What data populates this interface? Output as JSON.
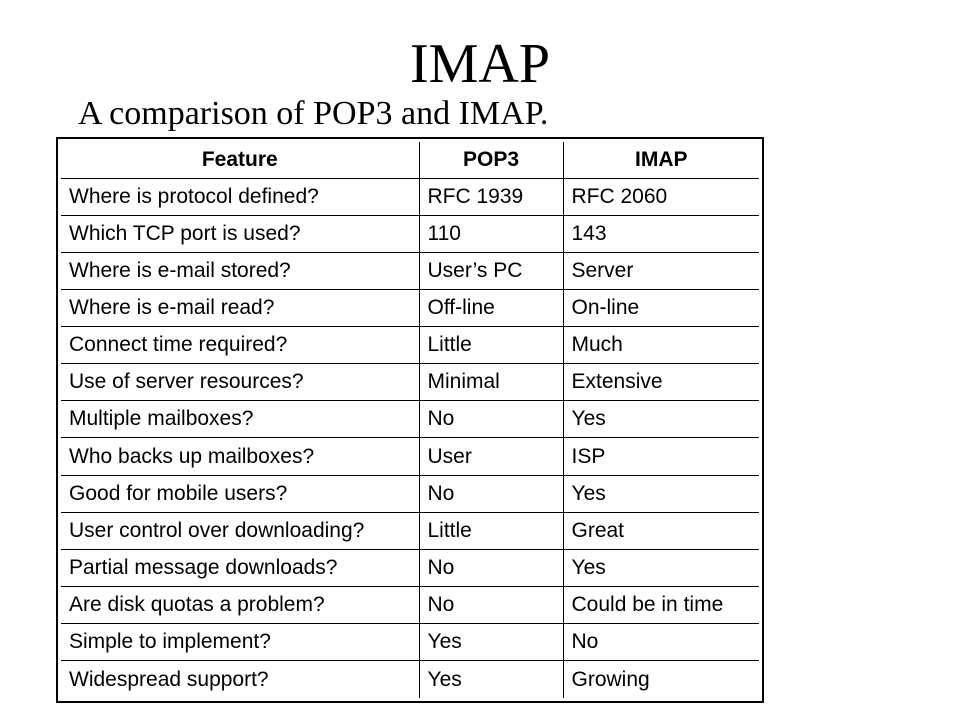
{
  "slide": {
    "title": "IMAP",
    "subtitle": "A comparison of POP3 and IMAP."
  },
  "chart_data": {
    "type": "table",
    "columns": [
      "Feature",
      "POP3",
      "IMAP"
    ],
    "rows": [
      {
        "feature": "Where is protocol defined?",
        "pop3": "RFC 1939",
        "imap": "RFC 2060"
      },
      {
        "feature": "Which TCP port is used?",
        "pop3": "110",
        "imap": "143"
      },
      {
        "feature": "Where is e-mail stored?",
        "pop3": "User’s PC",
        "imap": "Server"
      },
      {
        "feature": "Where is e-mail read?",
        "pop3": "Off-line",
        "imap": "On-line"
      },
      {
        "feature": "Connect time required?",
        "pop3": "Little",
        "imap": "Much"
      },
      {
        "feature": "Use of server resources?",
        "pop3": "Minimal",
        "imap": "Extensive"
      },
      {
        "feature": "Multiple mailboxes?",
        "pop3": "No",
        "imap": "Yes"
      },
      {
        "feature": "Who backs up mailboxes?",
        "pop3": "User",
        "imap": "ISP"
      },
      {
        "feature": "Good for mobile users?",
        "pop3": "No",
        "imap": "Yes"
      },
      {
        "feature": "User control over downloading?",
        "pop3": "Little",
        "imap": "Great"
      },
      {
        "feature": "Partial message downloads?",
        "pop3": "No",
        "imap": "Yes"
      },
      {
        "feature": "Are disk quotas a problem?",
        "pop3": "No",
        "imap": "Could be in time"
      },
      {
        "feature": "Simple to implement?",
        "pop3": "Yes",
        "imap": "No"
      },
      {
        "feature": "Widespread support?",
        "pop3": "Yes",
        "imap": "Growing"
      }
    ]
  }
}
